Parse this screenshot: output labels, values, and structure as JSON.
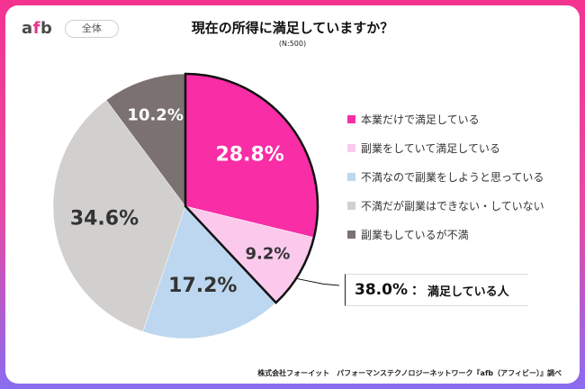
{
  "brand": {
    "logo_a": "a",
    "logo_f": "f",
    "logo_b": "b",
    "tag": "全体"
  },
  "colors": {
    "accent": "#e8348d",
    "frame_top": "#f4338f",
    "frame_bottom": "#8a6cf0"
  },
  "chart_data": {
    "type": "pie",
    "title": "現在の所得に満足していますか？",
    "subtitle": "(N:500)",
    "slices": [
      {
        "label": "本業だけで満足している",
        "value": 28.8,
        "display": "28.8%",
        "color": "#f92da6",
        "text_color": "#ffffff"
      },
      {
        "label": "副業をしていて満足している",
        "value": 9.2,
        "display": "9.2%",
        "color": "#fbc9ec",
        "text_color": "#333333"
      },
      {
        "label": "不満なので副業をしようと思っている",
        "value": 17.2,
        "display": "17.2%",
        "color": "#bcd7ef",
        "text_color": "#333333"
      },
      {
        "label": "不満だが副業はできない・していない",
        "value": 34.6,
        "display": "34.6%",
        "color": "#d2cfcf",
        "text_color": "#333333"
      },
      {
        "label": "副業もしているが不満",
        "value": 10.2,
        "display": "10.2%",
        "color": "#7a7170",
        "text_color": "#ffffff"
      }
    ],
    "start_angle": "12 o'clock, clockwise",
    "highlight": {
      "value": "38.0%",
      "separator": "：",
      "label": "満足している人",
      "covers": [
        0,
        1
      ]
    }
  },
  "footer": "株式会社フォーイット　パフォーマンステクノロジーネットワーク『afb（アフィビー）』調べ"
}
